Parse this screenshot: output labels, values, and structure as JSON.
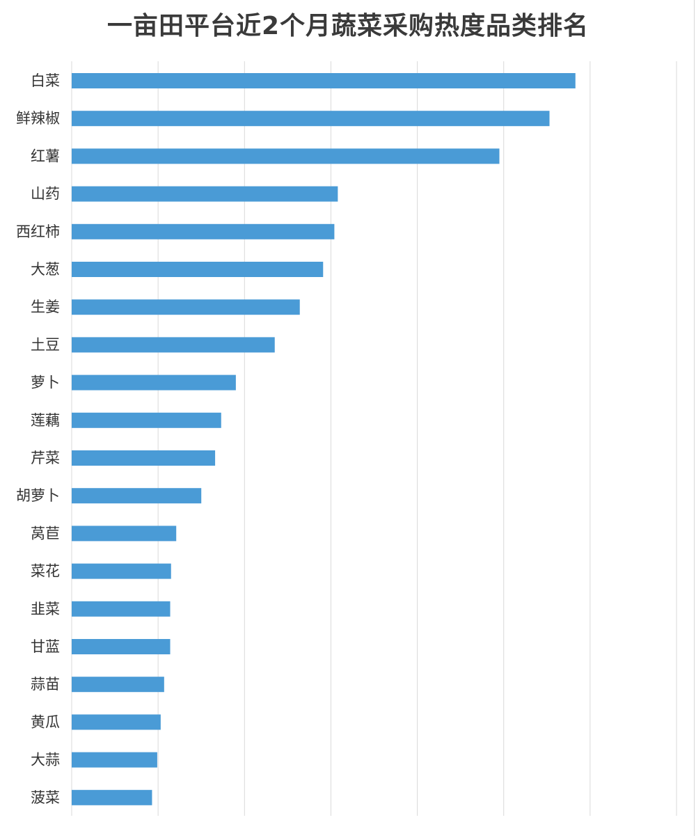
{
  "chart_data": {
    "type": "bar",
    "orientation": "horizontal",
    "title": "一亩田平台近2个月蔬菜采购热度品类排名",
    "xlabel": "",
    "ylabel": "",
    "categories": [
      "白菜",
      "鲜辣椒",
      "红薯",
      "山药",
      "西红柿",
      "大葱",
      "生姜",
      "土豆",
      "萝卜",
      "莲藕",
      "芹菜",
      "胡萝卜",
      "莴苣",
      "菜花",
      "韭菜",
      "甘蓝",
      "蒜苗",
      "黄瓜",
      "大蒜",
      "菠菜"
    ],
    "values": [
      5.83,
      5.53,
      4.95,
      3.08,
      3.04,
      2.91,
      2.64,
      2.35,
      1.9,
      1.73,
      1.66,
      1.5,
      1.21,
      1.15,
      1.14,
      1.14,
      1.07,
      1.03,
      0.99,
      0.93
    ],
    "xlim": [
      0,
      7
    ],
    "grid": true,
    "legend": "none",
    "colors": {
      "bar": "#4a9bd6",
      "grid": "#d9d9d9",
      "text": "#333333",
      "title": "#3a3a3a"
    }
  }
}
